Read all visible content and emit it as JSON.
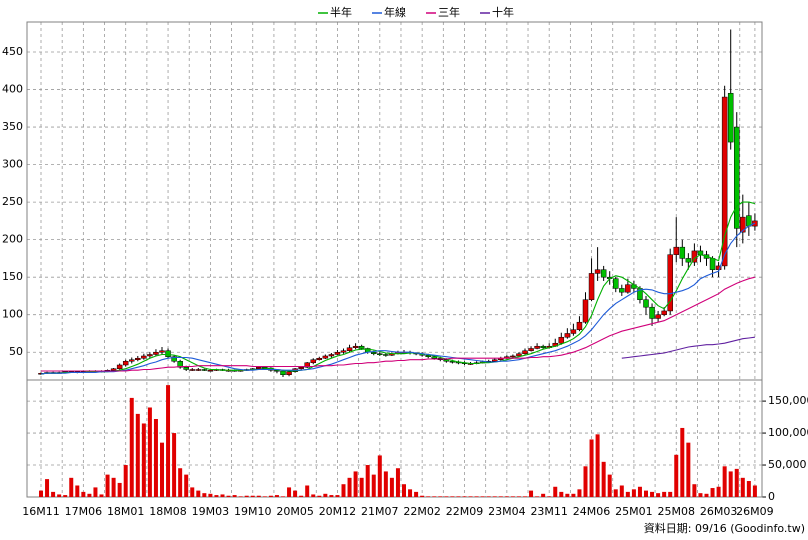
{
  "chart_data": {
    "type": "candlestick",
    "x": [
      "16M11",
      null,
      null,
      null,
      null,
      null,
      null,
      "17M06",
      null,
      null,
      null,
      null,
      null,
      null,
      "18M01",
      null,
      null,
      null,
      null,
      null,
      null,
      "18M08",
      null,
      null,
      null,
      null,
      null,
      null,
      "19M03",
      null,
      null,
      null,
      null,
      null,
      null,
      "19M10",
      null,
      null,
      null,
      null,
      null,
      null,
      "20M05",
      null,
      null,
      null,
      null,
      null,
      null,
      "20M12",
      null,
      null,
      null,
      null,
      null,
      null,
      "21M07",
      null,
      null,
      null,
      null,
      null,
      null,
      "22M02",
      null,
      null,
      null,
      null,
      null,
      null,
      "22M09",
      null,
      null,
      null,
      null,
      null,
      null,
      "23M04",
      null,
      null,
      null,
      null,
      null,
      null,
      "23M11",
      null,
      null,
      null,
      null,
      null,
      null,
      "24M06",
      null,
      null,
      null,
      null,
      null,
      null,
      "25M01",
      null,
      null,
      null,
      null,
      null,
      null,
      "25M08",
      null,
      null,
      null,
      null,
      null,
      null,
      "26M03",
      null,
      null,
      null,
      null,
      null,
      "26M09"
    ],
    "open": [
      21,
      22,
      23,
      23,
      23,
      24,
      24,
      23,
      24,
      25,
      24,
      25,
      26,
      28,
      33,
      38,
      40,
      42,
      45,
      47,
      50,
      52,
      44,
      38,
      30,
      27,
      27,
      27,
      26,
      26,
      27,
      26,
      26,
      25,
      26,
      27,
      28,
      30,
      29,
      26,
      25,
      20,
      24,
      28,
      30,
      36,
      40,
      42,
      45,
      47,
      50,
      52,
      56,
      58,
      55,
      50,
      48,
      47,
      46,
      48,
      50,
      50,
      49,
      48,
      46,
      44,
      42,
      40,
      38,
      37,
      36,
      35,
      35,
      36,
      37,
      38,
      40,
      42,
      44,
      45,
      48,
      52,
      55,
      58,
      56,
      58,
      62,
      70,
      75,
      80,
      90,
      120,
      155,
      160,
      150,
      148,
      135,
      130,
      140,
      135,
      120,
      110,
      95,
      100,
      105,
      180,
      190,
      175,
      170,
      185,
      180,
      175,
      160,
      165,
      395,
      350,
      210,
      232,
      218
    ],
    "high": [
      23,
      24,
      24,
      24,
      25,
      25,
      25,
      25,
      26,
      26,
      26,
      27,
      29,
      35,
      40,
      43,
      45,
      48,
      50,
      54,
      57,
      55,
      46,
      40,
      32,
      29,
      29,
      28,
      28,
      28,
      28,
      28,
      27,
      27,
      28,
      29,
      31,
      31,
      30,
      27,
      26,
      25,
      29,
      31,
      37,
      42,
      44,
      47,
      49,
      53,
      55,
      60,
      62,
      60,
      56,
      52,
      50,
      49,
      50,
      52,
      53,
      52,
      50,
      50,
      48,
      46,
      44,
      42,
      40,
      39,
      38,
      37,
      38,
      39,
      40,
      42,
      44,
      46,
      47,
      50,
      55,
      58,
      62,
      60,
      62,
      68,
      76,
      82,
      88,
      98,
      130,
      175,
      190,
      165,
      158,
      150,
      140,
      148,
      145,
      138,
      125,
      115,
      105,
      110,
      188,
      230,
      200,
      182,
      195,
      192,
      185,
      178,
      170,
      405,
      480,
      370,
      260,
      250,
      235
    ],
    "low": [
      20,
      21,
      22,
      22,
      22,
      23,
      22,
      22,
      23,
      23,
      23,
      24,
      25,
      27,
      31,
      35,
      38,
      40,
      42,
      45,
      47,
      42,
      36,
      28,
      25,
      25,
      25,
      25,
      25,
      25,
      25,
      24,
      24,
      24,
      25,
      26,
      27,
      28,
      24,
      22,
      17,
      18,
      23,
      27,
      29,
      34,
      39,
      41,
      43,
      46,
      48,
      50,
      54,
      53,
      48,
      46,
      45,
      44,
      45,
      47,
      48,
      47,
      46,
      44,
      42,
      40,
      38,
      36,
      35,
      34,
      33,
      33,
      34,
      35,
      36,
      37,
      39,
      41,
      43,
      44,
      47,
      51,
      54,
      54,
      55,
      57,
      60,
      68,
      72,
      78,
      88,
      118,
      145,
      145,
      140,
      130,
      125,
      128,
      130,
      115,
      100,
      85,
      90,
      98,
      100,
      170,
      165,
      160,
      165,
      170,
      165,
      150,
      150,
      160,
      320,
      190,
      195,
      205,
      212
    ],
    "close": [
      22,
      23,
      23,
      23,
      24,
      24,
      23,
      24,
      25,
      24,
      25,
      26,
      28,
      33,
      38,
      40,
      42,
      45,
      47,
      50,
      52,
      44,
      38,
      30,
      27,
      27,
      27,
      26,
      26,
      27,
      26,
      26,
      25,
      26,
      27,
      28,
      30,
      29,
      26,
      25,
      20,
      24,
      28,
      30,
      36,
      40,
      42,
      45,
      47,
      50,
      52,
      56,
      58,
      55,
      50,
      48,
      47,
      46,
      48,
      50,
      50,
      49,
      48,
      46,
      44,
      42,
      40,
      38,
      37,
      36,
      35,
      35,
      36,
      37,
      38,
      40,
      42,
      44,
      45,
      48,
      52,
      55,
      58,
      56,
      58,
      62,
      70,
      75,
      80,
      90,
      120,
      155,
      160,
      150,
      148,
      135,
      130,
      140,
      135,
      120,
      110,
      95,
      100,
      105,
      180,
      190,
      175,
      170,
      185,
      180,
      175,
      160,
      165,
      390,
      330,
      215,
      230,
      218,
      225
    ],
    "up_color": "#e00000",
    "down_color": "#00c000",
    "ylim": [
      13,
      490
    ],
    "yticks": [
      50,
      100,
      150,
      200,
      250,
      300,
      350,
      400,
      450
    ],
    "grid": true,
    "legend": "top",
    "series": [
      {
        "name": "半年",
        "color": "#00b000",
        "values": [
          21,
          22,
          22,
          22,
          23,
          23,
          23,
          23,
          24,
          24,
          24,
          24,
          25,
          26,
          28,
          31,
          34,
          38,
          42,
          45,
          47,
          47,
          46,
          44,
          40,
          36,
          32,
          29,
          27,
          27,
          26,
          26,
          26,
          26,
          26,
          27,
          27,
          28,
          28,
          27,
          26,
          25,
          25,
          26,
          27,
          31,
          35,
          39,
          42,
          45,
          47,
          50,
          53,
          54,
          54,
          53,
          51,
          49,
          48,
          48,
          48,
          49,
          49,
          48,
          47,
          45,
          43,
          41,
          39,
          37,
          36,
          35,
          35,
          36,
          36,
          37,
          38,
          40,
          42,
          44,
          46,
          48,
          51,
          54,
          56,
          58,
          61,
          64,
          68,
          74,
          84,
          99,
          120,
          138,
          148,
          152,
          150,
          145,
          140,
          135,
          128,
          120,
          112,
          108,
          118,
          132,
          148,
          162,
          175,
          180,
          178,
          175,
          172,
          205,
          230,
          245,
          250,
          250,
          248
        ]
      },
      {
        "name": "年線",
        "color": "#1e5bd8",
        "values": [
          21,
          22,
          22,
          22,
          22,
          23,
          23,
          23,
          23,
          23,
          24,
          24,
          24,
          25,
          26,
          28,
          30,
          32,
          35,
          37,
          40,
          42,
          43,
          43,
          43,
          42,
          40,
          38,
          36,
          34,
          32,
          30,
          28,
          27,
          26,
          26,
          27,
          27,
          27,
          27,
          26,
          26,
          26,
          26,
          27,
          28,
          30,
          32,
          34,
          37,
          40,
          43,
          46,
          48,
          50,
          51,
          52,
          52,
          51,
          50,
          50,
          50,
          49,
          48,
          47,
          46,
          45,
          44,
          43,
          42,
          41,
          40,
          39,
          38,
          37,
          37,
          38,
          38,
          39,
          40,
          42,
          44,
          46,
          48,
          50,
          52,
          55,
          58,
          62,
          66,
          72,
          80,
          90,
          100,
          108,
          115,
          120,
          125,
          130,
          133,
          134,
          133,
          130,
          128,
          128,
          130,
          132,
          135,
          140,
          148,
          152,
          155,
          158,
          180,
          195,
          205,
          212,
          218,
          222
        ]
      },
      {
        "name": "三年",
        "color": "#d0007a",
        "values": [
          25,
          25,
          25,
          25,
          25,
          25,
          25,
          25,
          25,
          25,
          25,
          25,
          25,
          25,
          25,
          26,
          26,
          27,
          27,
          28,
          29,
          30,
          30,
          31,
          31,
          31,
          32,
          32,
          32,
          32,
          32,
          32,
          32,
          32,
          32,
          31,
          31,
          31,
          31,
          31,
          31,
          31,
          31,
          31,
          31,
          31,
          32,
          32,
          32,
          33,
          33,
          34,
          35,
          35,
          36,
          36,
          37,
          38,
          38,
          39,
          39,
          40,
          40,
          40,
          41,
          41,
          41,
          41,
          42,
          42,
          42,
          42,
          42,
          42,
          42,
          42,
          42,
          42,
          42,
          42,
          42,
          43,
          43,
          44,
          44,
          45,
          46,
          48,
          50,
          53,
          56,
          60,
          64,
          68,
          72,
          75,
          78,
          80,
          82,
          84,
          86,
          88,
          90,
          92,
          96,
          100,
          104,
          108,
          112,
          116,
          120,
          124,
          128,
          134,
          138,
          142,
          145,
          148,
          150
        ]
      },
      {
        "name": "十年",
        "color": "#6020a0",
        "values": [
          null,
          null,
          null,
          null,
          null,
          null,
          null,
          null,
          null,
          null,
          null,
          null,
          null,
          null,
          null,
          null,
          null,
          null,
          null,
          null,
          null,
          null,
          null,
          null,
          null,
          null,
          null,
          null,
          null,
          null,
          null,
          null,
          null,
          null,
          null,
          null,
          null,
          null,
          null,
          null,
          null,
          null,
          null,
          null,
          null,
          null,
          null,
          null,
          null,
          null,
          null,
          null,
          null,
          null,
          null,
          null,
          null,
          null,
          null,
          null,
          null,
          null,
          null,
          null,
          null,
          null,
          null,
          null,
          null,
          null,
          null,
          null,
          null,
          null,
          null,
          null,
          null,
          null,
          null,
          null,
          null,
          null,
          null,
          null,
          null,
          null,
          null,
          null,
          null,
          null,
          null,
          null,
          null,
          null,
          null,
          null,
          42,
          43,
          44,
          45,
          46,
          47,
          48,
          49,
          51,
          53,
          55,
          57,
          58,
          59,
          60,
          60,
          61,
          62,
          64,
          66,
          68,
          69,
          70
        ]
      }
    ],
    "volume": {
      "type": "bar",
      "color": "#e00000",
      "values": [
        10000,
        28000,
        8000,
        4000,
        3000,
        30000,
        18000,
        8000,
        5000,
        15000,
        4000,
        35000,
        30000,
        22000,
        50000,
        155000,
        130000,
        115000,
        140000,
        122000,
        85000,
        175000,
        100000,
        45000,
        35000,
        15000,
        10000,
        6000,
        5000,
        3000,
        4000,
        2000,
        3000,
        1000,
        2000,
        2000,
        2000,
        1000,
        2000,
        3000,
        1000,
        15000,
        10000,
        2000,
        18000,
        4000,
        2000,
        5000,
        3000,
        3000,
        20000,
        30000,
        40000,
        30000,
        50000,
        35000,
        65000,
        40000,
        30000,
        45000,
        20000,
        12000,
        8000,
        2000,
        1000,
        1000,
        1000,
        1000,
        1000,
        1000,
        1000,
        1000,
        1000,
        1000,
        1000,
        1000,
        1000,
        1000,
        1000,
        1000,
        1000,
        10000,
        1000,
        5000,
        1000,
        16000,
        8000,
        5000,
        5000,
        12000,
        48000,
        90000,
        98000,
        55000,
        35000,
        12000,
        18000,
        8000,
        12000,
        16000,
        10000,
        8000,
        6000,
        8000,
        8000,
        66000,
        108000,
        85000,
        20000,
        6000,
        5000,
        14000,
        16000,
        48000,
        40000,
        44000,
        30000,
        25000,
        18000
      ],
      "ylim": [
        0,
        183000
      ],
      "yticks": [
        0,
        {
          "value": 50000,
          "label": "50,000"
        },
        {
          "value": 100000,
          "label": "100,000"
        },
        {
          "value": 150000,
          "label": "150,000"
        }
      ]
    },
    "annotation": "資料日期: 09/16 (Goodinfo.tw)"
  }
}
